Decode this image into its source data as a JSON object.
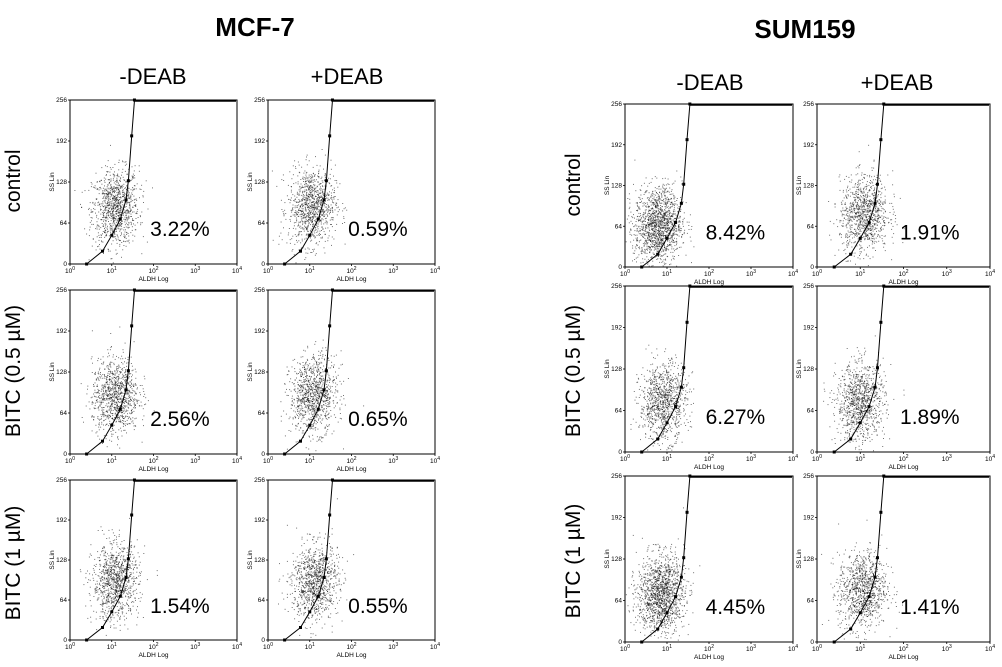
{
  "groups": [
    {
      "title": "MCF-7",
      "columns": [
        "-DEAB",
        "+DEAB"
      ],
      "rows": [
        "control",
        "BITC  (0.5 µM)",
        "BITC (1 µM)"
      ]
    },
    {
      "title": "SUM159",
      "columns": [
        "-DEAB",
        "+DEAB"
      ],
      "rows": [
        "control",
        "BITC  (0.5 µM)",
        "BITC (1 µM)"
      ]
    }
  ],
  "chart_data": {
    "type": "scatter",
    "xlabel": "ALDH Log",
    "ylabel": "SS Lin",
    "x_scale": "log",
    "xlim": [
      1,
      10000
    ],
    "ylim": [
      0,
      256
    ],
    "x_ticks": [
      "10",
      "10",
      "10",
      "10",
      "10"
    ],
    "x_tick_exponents": [
      "0",
      "1",
      "2",
      "3",
      "4"
    ],
    "y_ticks": [
      "0",
      "64",
      "128",
      "192",
      "256"
    ],
    "panels": [
      {
        "group": "MCF-7",
        "row": "control",
        "column": "-DEAB",
        "aldh_positive_percent": "3.22%",
        "cloud_center": [
          12,
          80
        ],
        "density": "medium"
      },
      {
        "group": "MCF-7",
        "row": "control",
        "column": "+DEAB",
        "aldh_positive_percent": "0.59%",
        "cloud_center": [
          11,
          82
        ],
        "density": "medium"
      },
      {
        "group": "MCF-7",
        "row": "BITC  (0.5 µM)",
        "column": "-DEAB",
        "aldh_positive_percent": "2.56%",
        "cloud_center": [
          12,
          82
        ],
        "density": "medium"
      },
      {
        "group": "MCF-7",
        "row": "BITC  (0.5 µM)",
        "column": "+DEAB",
        "aldh_positive_percent": "0.65%",
        "cloud_center": [
          12,
          85
        ],
        "density": "medium"
      },
      {
        "group": "MCF-7",
        "row": "BITC (1 µM)",
        "column": "-DEAB",
        "aldh_positive_percent": "1.54%",
        "cloud_center": [
          12,
          85
        ],
        "density": "medium"
      },
      {
        "group": "MCF-7",
        "row": "BITC (1 µM)",
        "column": "+DEAB",
        "aldh_positive_percent": "0.55%",
        "cloud_center": [
          13,
          85
        ],
        "density": "medium"
      },
      {
        "group": "SUM159",
        "row": "control",
        "column": "-DEAB",
        "aldh_positive_percent": "8.42%",
        "cloud_center": [
          6,
          60
        ],
        "density": "high"
      },
      {
        "group": "SUM159",
        "row": "control",
        "column": "+DEAB",
        "aldh_positive_percent": "1.91%",
        "cloud_center": [
          12,
          75
        ],
        "density": "medium"
      },
      {
        "group": "SUM159",
        "row": "BITC  (0.5 µM)",
        "column": "-DEAB",
        "aldh_positive_percent": "6.27%",
        "cloud_center": [
          8,
          70
        ],
        "density": "medium"
      },
      {
        "group": "SUM159",
        "row": "BITC  (0.5 µM)",
        "column": "+DEAB",
        "aldh_positive_percent": "1.89%",
        "cloud_center": [
          10,
          70
        ],
        "density": "medium"
      },
      {
        "group": "SUM159",
        "row": "BITC (1 µM)",
        "column": "-DEAB",
        "aldh_positive_percent": "4.45%",
        "cloud_center": [
          7,
          68
        ],
        "density": "high"
      },
      {
        "group": "SUM159",
        "row": "BITC (1 µM)",
        "column": "+DEAB",
        "aldh_positive_percent": "1.41%",
        "cloud_center": [
          11,
          72
        ],
        "density": "medium"
      }
    ],
    "gate": {
      "vertices": [
        [
          2.5,
          0
        ],
        [
          6,
          20
        ],
        [
          10,
          45
        ],
        [
          16,
          70
        ],
        [
          22,
          100
        ],
        [
          25,
          130
        ],
        [
          30,
          200
        ],
        [
          35,
          256
        ]
      ],
      "stroke": "#000000"
    },
    "point_color": "#000000"
  }
}
